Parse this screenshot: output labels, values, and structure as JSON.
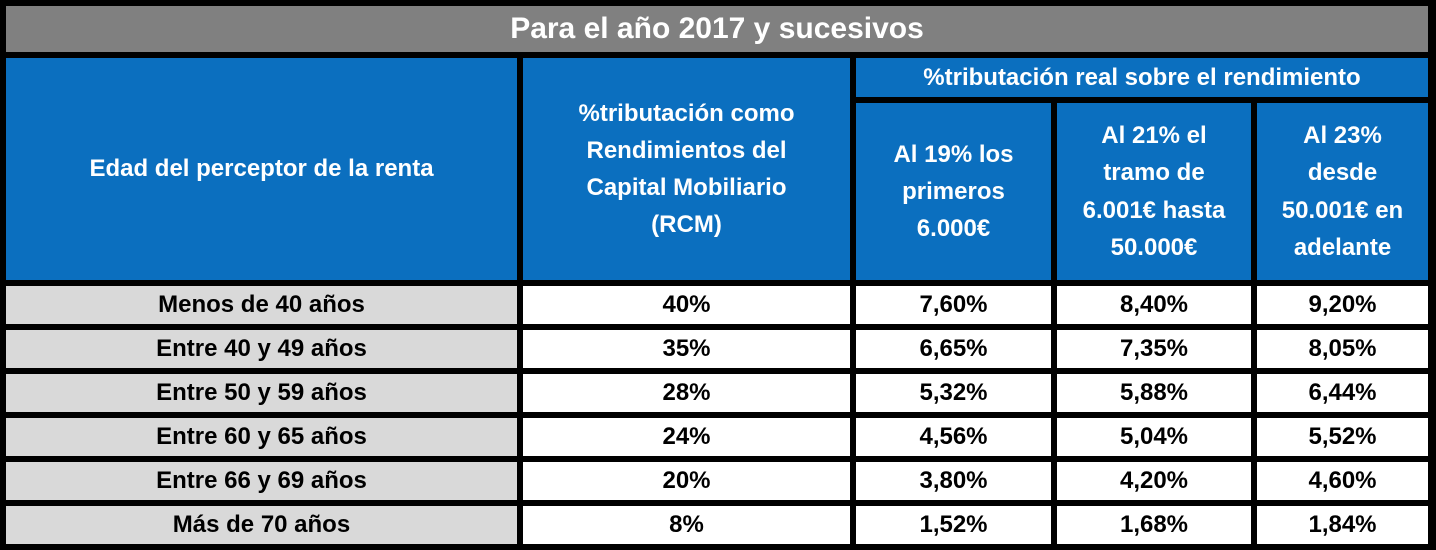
{
  "title": "Para el año 2017 y sucesivos",
  "headers": {
    "age": "Edad del perceptor de la renta",
    "rcm": "%tributación como Rendimientos del Capital Mobiliario (RCM)",
    "group": "%tributación real sobre el rendimiento",
    "sub": [
      "Al 19% los primeros 6.000€",
      "Al 21% el tramo de 6.001€ hasta 50.000€",
      "Al 23% desde 50.001€ en adelante"
    ]
  },
  "rows": [
    [
      "Menos de 40 años",
      "40%",
      "7,60%",
      "8,40%",
      "9,20%"
    ],
    [
      "Entre 40 y 49 años",
      "35%",
      "6,65%",
      "7,35%",
      "8,05%"
    ],
    [
      "Entre 50 y 59 años",
      "28%",
      "5,32%",
      "5,88%",
      "6,44%"
    ],
    [
      "Entre 60 y 65 años",
      "24%",
      "4,56%",
      "5,04%",
      "5,52%"
    ],
    [
      "Entre 66 y 69 años",
      "20%",
      "3,80%",
      "4,20%",
      "4,60%"
    ],
    [
      "Más de 70 años",
      "8%",
      "1,52%",
      "1,68%",
      "1,84%"
    ]
  ],
  "colors": {
    "title_bg": "#808080",
    "header_bg": "#0b6fbf",
    "age_bg": "#d9d9d9",
    "border": "#000000"
  }
}
